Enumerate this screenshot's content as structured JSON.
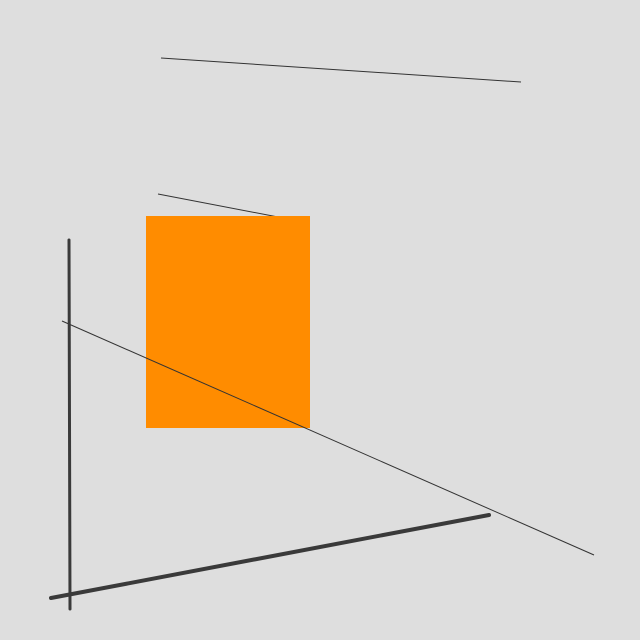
{
  "canvas": {
    "background_color": "#dedede"
  },
  "shapes": {
    "rectangle": {
      "fill_color": "#ff8c00"
    },
    "line_color": "#3a3a3a",
    "thin_line_color": "#333333"
  }
}
